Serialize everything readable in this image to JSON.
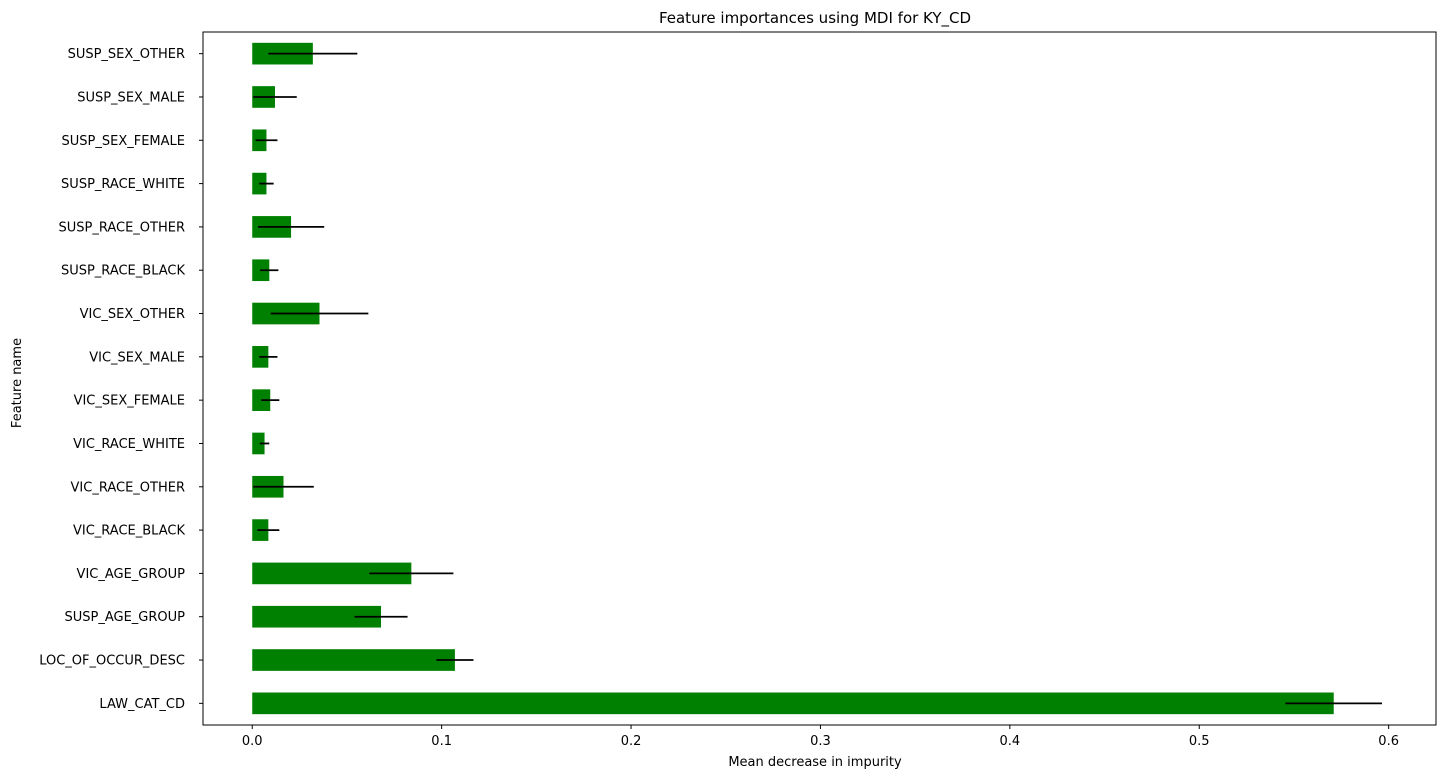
{
  "chart_data": {
    "type": "bar",
    "orientation": "horizontal",
    "title": "Feature importances using MDI for KY_CD",
    "xlabel": "Mean decrease in impurity",
    "ylabel": "Feature name",
    "xlim": [
      -0.026,
      0.625
    ],
    "xticks": [
      0.0,
      0.1,
      0.2,
      0.3,
      0.4,
      0.5,
      0.6
    ],
    "xtick_labels": [
      "0.0",
      "0.1",
      "0.2",
      "0.3",
      "0.4",
      "0.5",
      "0.6"
    ],
    "grid": false,
    "bar_color": "#008000",
    "errorbar_color": "#000000",
    "categories": [
      "LAW_CAT_CD",
      "LOC_OF_OCCUR_DESC",
      "SUSP_AGE_GROUP",
      "VIC_AGE_GROUP",
      "VIC_RACE_BLACK",
      "VIC_RACE_OTHER",
      "VIC_RACE_WHITE",
      "VIC_SEX_FEMALE",
      "VIC_SEX_MALE",
      "VIC_SEX_OTHER",
      "SUSP_RACE_BLACK",
      "SUSP_RACE_OTHER",
      "SUSP_RACE_WHITE",
      "SUSP_SEX_FEMALE",
      "SUSP_SEX_MALE",
      "SUSP_SEX_OTHER"
    ],
    "values": [
      0.571,
      0.107,
      0.068,
      0.084,
      0.0085,
      0.0165,
      0.0065,
      0.0095,
      0.0085,
      0.0355,
      0.009,
      0.0205,
      0.0075,
      0.0075,
      0.012,
      0.032
    ],
    "errors": [
      0.0255,
      0.0098,
      0.014,
      0.0222,
      0.0058,
      0.016,
      0.0025,
      0.0048,
      0.0048,
      0.0258,
      0.0048,
      0.0175,
      0.0038,
      0.0058,
      0.0115,
      0.0235
    ]
  }
}
